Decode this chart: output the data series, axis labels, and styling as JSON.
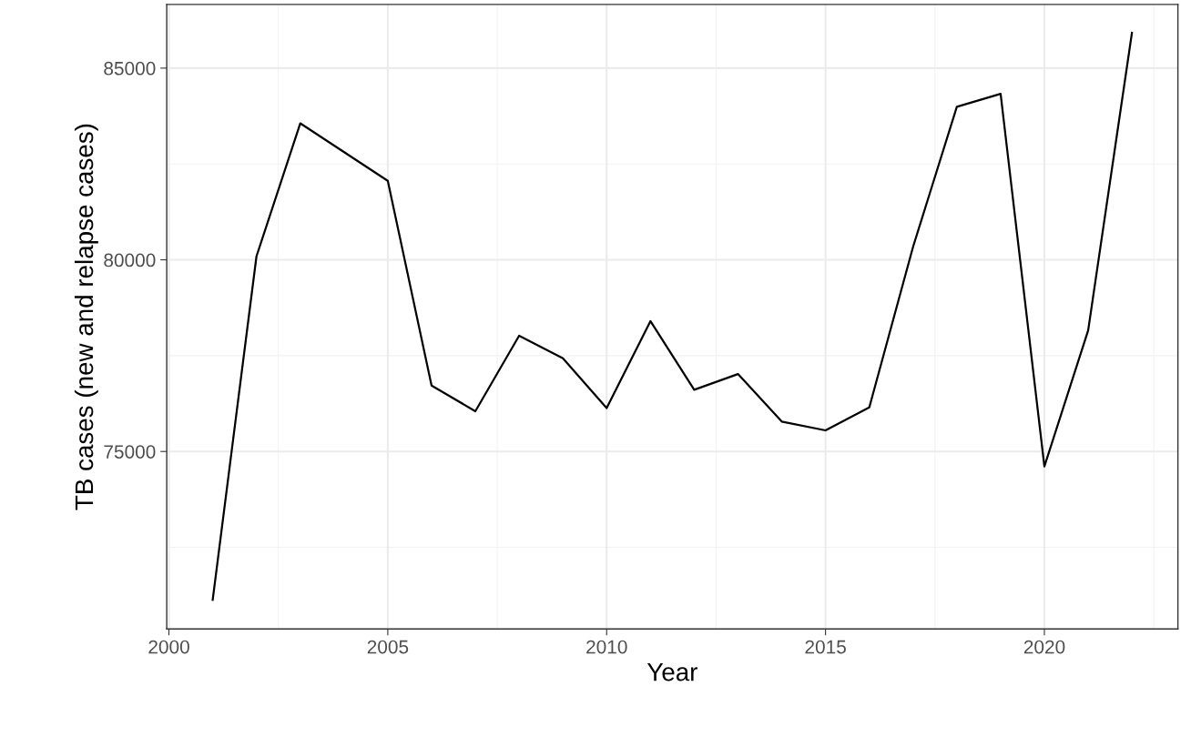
{
  "chart_data": {
    "type": "line",
    "xlabel": "Year",
    "ylabel": "TB cases (new and relapse cases)",
    "x": [
      2001,
      2002,
      2003,
      2005,
      2006,
      2007,
      2008,
      2009,
      2010,
      2011,
      2012,
      2013,
      2014,
      2015,
      2016,
      2017,
      2018,
      2019,
      2020,
      2021,
      2022
    ],
    "series": [
      {
        "color": "#000000",
        "values": [
          71130,
          80090,
          83560,
          82060,
          76720,
          76050,
          78020,
          77430,
          76130,
          78400,
          76610,
          77020,
          75780,
          75550,
          76150,
          80340,
          83990,
          84330,
          74610,
          78160,
          85920
        ]
      }
    ],
    "xlim": [
      1999.95,
      2023.05
    ],
    "xticks": [
      2000,
      2005,
      2010,
      2015,
      2020
    ],
    "ylim": [
      70370,
      86660
    ],
    "yticks": [
      75000,
      80000,
      85000
    ],
    "grid": true,
    "marker": "none",
    "line_style": "solid"
  }
}
